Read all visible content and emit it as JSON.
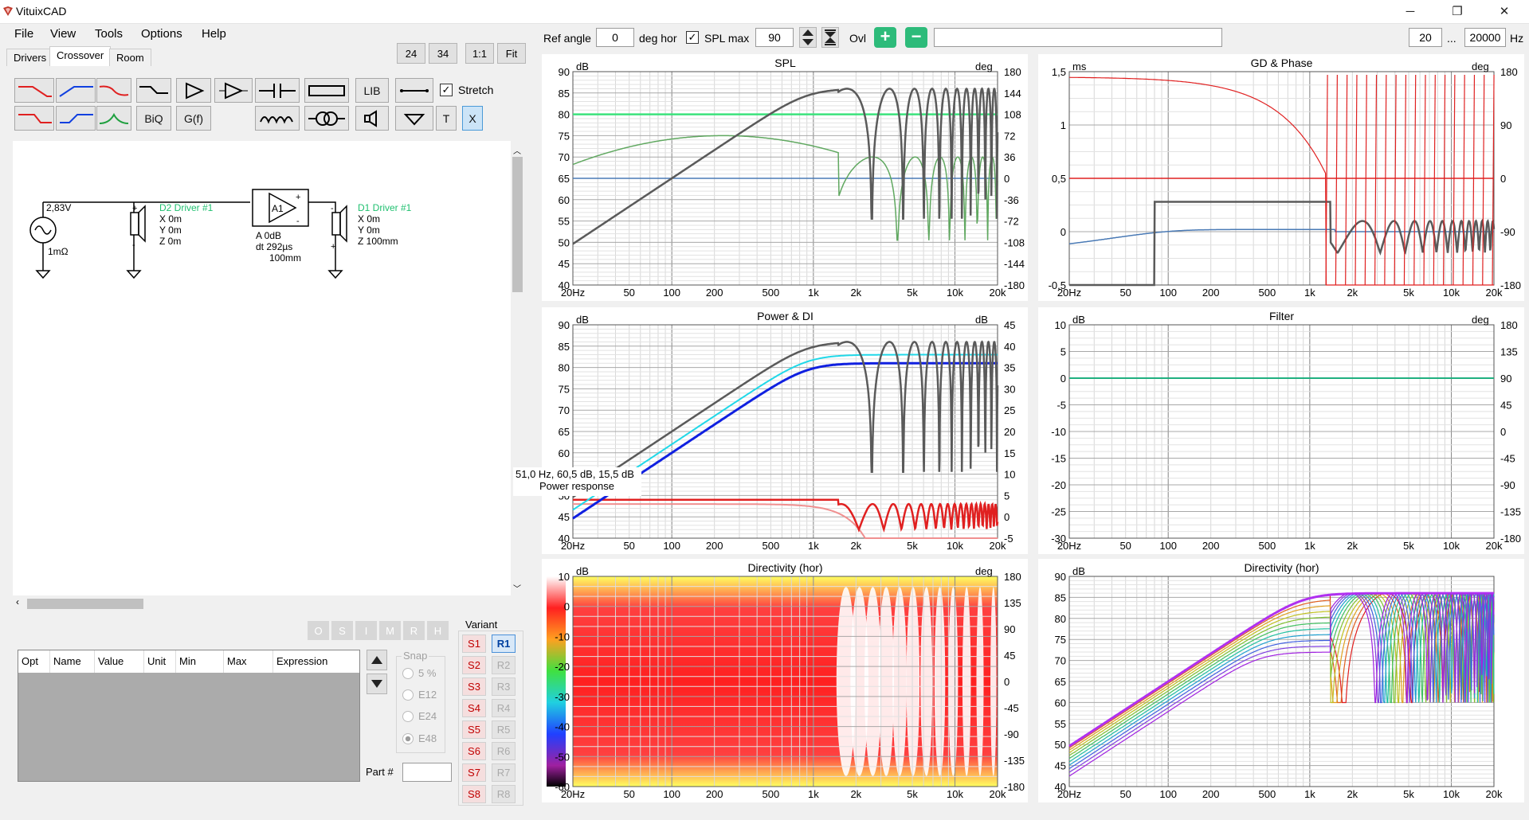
{
  "window": {
    "title": "VituixCAD",
    "minimize": "─",
    "restore": "❐",
    "close": "✕"
  },
  "menu": [
    "File",
    "View",
    "Tools",
    "Options",
    "Help"
  ],
  "tabs": [
    "Drivers",
    "Crossover",
    "Room"
  ],
  "zoom_buttons": [
    "24",
    "34",
    "1:1",
    "Fit"
  ],
  "toolbar": {
    "lib": "LIB",
    "stretch": "Stretch",
    "biq": "BiQ",
    "gf": "G(f)",
    "t": "T",
    "x": "X"
  },
  "schematic": {
    "source_voltage": "2,83V",
    "source_impedance": "1mΩ",
    "d2_name": "D2 Driver #1",
    "d2_x": "X 0m",
    "d2_y": "Y 0m",
    "d2_z": "Z 0m",
    "amp_label": "A1",
    "amp_a": "A  0dB",
    "amp_dt": "dt 292µs",
    "amp_mm": "100mm",
    "d1_name": "D1 Driver #1",
    "d1_x": "X 0m",
    "d1_y": "Y 0m",
    "d1_z": "Z 100mm"
  },
  "opt_buttons": [
    "O",
    "S",
    "I",
    "M",
    "R",
    "H"
  ],
  "table_headers": [
    "Opt",
    "Name",
    "Value",
    "Unit",
    "Min",
    "Max",
    "Expression"
  ],
  "snap": {
    "label": "Snap",
    "options": [
      "5 %",
      "E12",
      "E24",
      "E48"
    ]
  },
  "part_label": "Part #",
  "variant": {
    "label": "Variant",
    "s": [
      "S1",
      "S2",
      "S3",
      "S4",
      "S5",
      "S6",
      "S7",
      "S8"
    ],
    "r": [
      "R1",
      "R2",
      "R3",
      "R4",
      "R5",
      "R6",
      "R7",
      "R8"
    ]
  },
  "topbar": {
    "ref_angle_label": "Ref angle",
    "ref_angle_value": "0",
    "deg_hor": "deg hor",
    "spl_max_label": "SPL max",
    "spl_max_value": "90",
    "ovl_label": "Ovl",
    "freq_min": "20",
    "freq_sep": "...",
    "freq_max": "20000",
    "hz": "Hz"
  },
  "freq_ticks": [
    "20Hz",
    "50",
    "100",
    "200",
    "500",
    "1k",
    "2k",
    "5k",
    "10k",
    "20k"
  ],
  "tooltip": {
    "line1": "51,0 Hz, 60,5 dB, 15,5 dB",
    "line2": "Power response"
  },
  "panels": {
    "spl": {
      "title": "SPL",
      "left_unit": "dB",
      "right_unit": "deg",
      "left": [
        "90",
        "85",
        "80",
        "75",
        "70",
        "65",
        "60",
        "55",
        "50",
        "45",
        "40"
      ],
      "right": [
        "180",
        "144",
        "108",
        "72",
        "36",
        "0",
        "-36",
        "-72",
        "-108",
        "-144",
        "-180"
      ]
    },
    "gd": {
      "title": "GD & Phase",
      "left_unit": "ms",
      "right_unit": "deg",
      "left": [
        "1,5",
        "1",
        "0,5",
        "0",
        "-0,5"
      ],
      "right": [
        "180",
        "90",
        "0",
        "-90",
        "-180"
      ]
    },
    "power": {
      "title": "Power & DI",
      "left_unit": "dB",
      "right_unit": "dB",
      "left": [
        "90",
        "85",
        "80",
        "75",
        "70",
        "65",
        "60",
        "55",
        "50",
        "45",
        "40"
      ],
      "right": [
        "45",
        "40",
        "35",
        "30",
        "25",
        "20",
        "15",
        "10",
        "5",
        "0",
        "-5"
      ]
    },
    "filter": {
      "title": "Filter",
      "left_unit": "dB",
      "right_unit": "deg",
      "left": [
        "10",
        "5",
        "0",
        "-5",
        "-10",
        "-15",
        "-20",
        "-25",
        "-30"
      ],
      "right": [
        "180",
        "135",
        "90",
        "45",
        "0",
        "-45",
        "-90",
        "-135",
        "-180"
      ]
    },
    "dir_map": {
      "title": "Directivity (hor)",
      "left_unit": "dB",
      "right_unit": "deg",
      "left": [
        "10",
        "0",
        "-10",
        "-20",
        "-30",
        "-40",
        "-50",
        "-60"
      ],
      "right": [
        "180",
        "135",
        "90",
        "45",
        "0",
        "-45",
        "-90",
        "-135",
        "-180"
      ]
    },
    "dir_curves": {
      "title": "Directivity (hor)",
      "left_unit": "dB",
      "left": [
        "90",
        "85",
        "80",
        "75",
        "70",
        "65",
        "60",
        "55",
        "50",
        "45",
        "40"
      ]
    }
  },
  "colors": {
    "accent": "#0078d7",
    "green_curve": "#3be37c",
    "red_curve": "#e02020",
    "gray_curve": "#5a5a5a",
    "blue_curve": "#1020e0",
    "cyan_curve": "#20d8e8"
  }
}
